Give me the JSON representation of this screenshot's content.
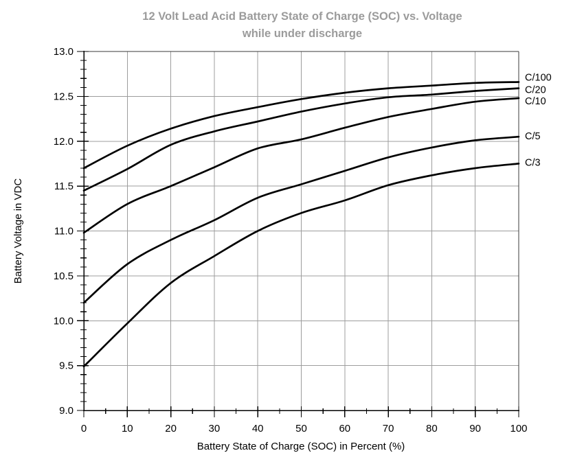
{
  "page": {
    "background": "#ffffff"
  },
  "chart_data": {
    "type": "line",
    "title": "12 Volt Lead Acid Battery State of Charge (SOC) vs. Voltage while under discharge",
    "title_line1": "12 Volt Lead Acid Battery State of Charge (SOC) vs. Voltage",
    "title_line2": "while under discharge",
    "xlabel": "Battery State of Charge (SOC) in Percent (%)",
    "ylabel": "Battery Voltage in VDC",
    "xlim": [
      0,
      100
    ],
    "ylim": [
      9.0,
      13.0
    ],
    "x_major_tick_step": 10,
    "x_minor_tick_step": 5,
    "y_major_tick_step": 0.5,
    "y_minor_tick_step": 0.1,
    "x_tick_labels": [
      "0",
      "10",
      "20",
      "30",
      "40",
      "50",
      "60",
      "70",
      "80",
      "90",
      "100"
    ],
    "y_tick_labels": [
      "9.0",
      "9.5",
      "10.0",
      "10.5",
      "11.0",
      "11.5",
      "12.0",
      "12.5",
      "13.0"
    ],
    "grid": true,
    "legend_position": "labels-at-right-edge-of-plot",
    "x": [
      0,
      10,
      20,
      30,
      40,
      50,
      60,
      70,
      80,
      90,
      100
    ],
    "series": [
      {
        "name": "C/100",
        "values": [
          11.7,
          11.95,
          12.14,
          12.28,
          12.38,
          12.47,
          12.54,
          12.59,
          12.62,
          12.65,
          12.66
        ]
      },
      {
        "name": "C/20",
        "values": [
          11.45,
          11.69,
          11.96,
          12.11,
          12.22,
          12.33,
          12.42,
          12.49,
          12.52,
          12.56,
          12.59
        ]
      },
      {
        "name": "C/10",
        "values": [
          10.98,
          11.3,
          11.5,
          11.71,
          11.92,
          12.02,
          12.15,
          12.27,
          12.36,
          12.44,
          12.48
        ]
      },
      {
        "name": "C/5",
        "values": [
          10.2,
          10.63,
          10.9,
          11.12,
          11.37,
          11.52,
          11.67,
          11.82,
          11.93,
          12.01,
          12.05
        ]
      },
      {
        "name": "C/3",
        "values": [
          9.49,
          9.97,
          10.42,
          10.72,
          11.0,
          11.2,
          11.34,
          11.51,
          11.62,
          11.7,
          11.75
        ]
      }
    ],
    "colors": {
      "curve": "#000000",
      "grid": "#9c9c9c",
      "axis": "#000000",
      "frame": "#3a3a3a",
      "title": "#9b9b9b",
      "text": "#000000"
    }
  }
}
